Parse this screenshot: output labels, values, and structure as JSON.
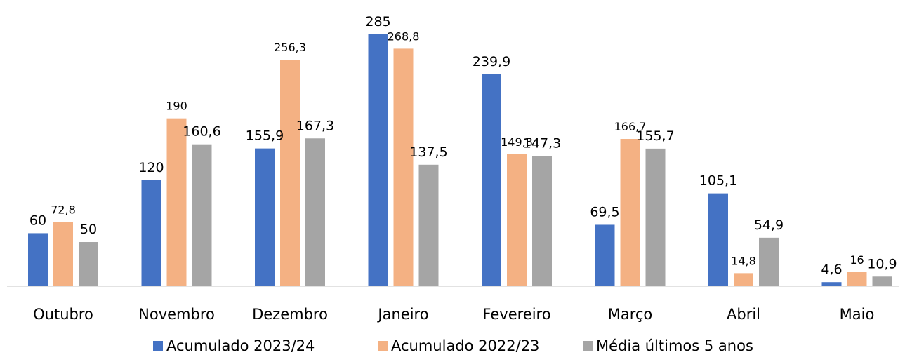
{
  "chart_data": {
    "type": "bar",
    "title": "",
    "xlabel": "",
    "ylabel": "",
    "ylim": [
      0,
      300
    ],
    "grid": false,
    "legend_position": "bottom",
    "categories": [
      "Outubro",
      "Novembro",
      "Dezembro",
      "Janeiro",
      "Fevereiro",
      "Março",
      "Abril",
      "Maio"
    ],
    "series": [
      {
        "name": "Acumulado 2023/24",
        "color": "#4472C4",
        "values": [
          60,
          120,
          155.9,
          285,
          239.9,
          69.5,
          105.1,
          4.6
        ],
        "labels": [
          "60",
          "120",
          "155,9",
          "285",
          "239,9",
          "69,5",
          "105,1",
          "4,6"
        ]
      },
      {
        "name": "Acumulado 2022/23",
        "color": "#F4B183",
        "values": [
          72.8,
          190,
          256.3,
          268.8,
          149.3,
          166.7,
          14.8,
          16
        ],
        "labels": [
          "72,8",
          "190",
          "256,3",
          "268,8",
          "149,3",
          "166,7",
          "14,8",
          "16"
        ]
      },
      {
        "name": "Média últimos 5 anos",
        "color": "#A5A5A5",
        "values": [
          50,
          160.6,
          167.3,
          137.5,
          147.3,
          155.7,
          54.9,
          10.9
        ],
        "labels": [
          "50",
          "160,6",
          "167,3",
          "137,5",
          "147,3",
          "155,7",
          "54,9",
          "10,9"
        ]
      }
    ],
    "axis_color": "#D9D9D9"
  }
}
